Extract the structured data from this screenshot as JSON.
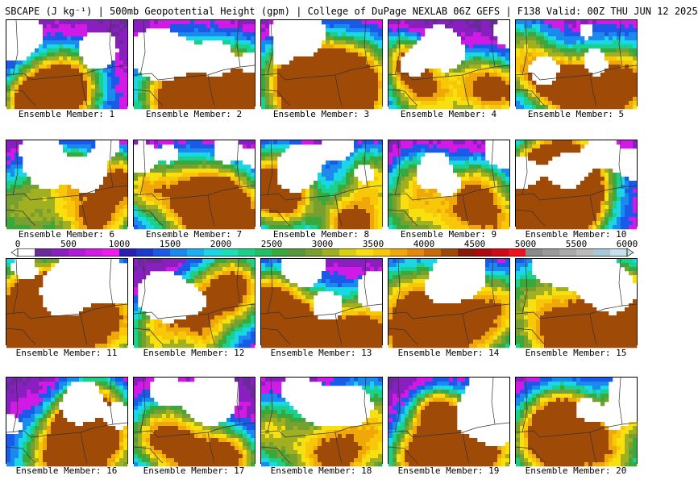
{
  "header": {
    "title": "SBCAPE (J kg⁻¹) | 500mb Geopotential Height (gpm) | College of DuPage NEXLAB 06Z GEFS | F138 Valid: 00Z THU JUN 12 2025"
  },
  "colorbar": {
    "labels": [
      "0",
      "500",
      "1000",
      "1500",
      "2000",
      "2500",
      "3000",
      "3500",
      "4000",
      "4500",
      "5000",
      "5500",
      "6000"
    ],
    "range": [
      0,
      6000
    ],
    "colors": [
      "#ffffff",
      "#6a2a9a",
      "#8a1fc0",
      "#b01ad8",
      "#d21ae6",
      "#f01af0",
      "#2a1fb0",
      "#1a3ad0",
      "#1a5ae8",
      "#1a8aee",
      "#1ab0f0",
      "#1ad6e6",
      "#1ae0b8",
      "#1ad08a",
      "#22c060",
      "#3aa83a",
      "#58983a",
      "#78a030",
      "#a0b020",
      "#d8d010",
      "#f8e010",
      "#f8c808",
      "#f0a808",
      "#e88808",
      "#c86a08",
      "#a04a08",
      "#8a1a08",
      "#b00810",
      "#d00818",
      "#f01020",
      "#8a8a8a",
      "#9a9a9a",
      "#aaaaaa",
      "#bababa",
      "#a8c8d8",
      "#c8e0ec"
    ]
  },
  "members": [
    {
      "label": "Ensemble Member: 1"
    },
    {
      "label": "Ensemble Member: 2"
    },
    {
      "label": "Ensemble Member: 3"
    },
    {
      "label": "Ensemble Member: 4"
    },
    {
      "label": "Ensemble Member: 5"
    },
    {
      "label": "Ensemble Member: 6"
    },
    {
      "label": "Ensemble Member: 7"
    },
    {
      "label": "Ensemble Member: 8"
    },
    {
      "label": "Ensemble Member: 9"
    },
    {
      "label": "Ensemble Member: 10"
    },
    {
      "label": "Ensemble Member: 11"
    },
    {
      "label": "Ensemble Member: 12"
    },
    {
      "label": "Ensemble Member: 13"
    },
    {
      "label": "Ensemble Member: 14"
    },
    {
      "label": "Ensemble Member: 15"
    },
    {
      "label": "Ensemble Member: 16"
    },
    {
      "label": "Ensemble Member: 17"
    },
    {
      "label": "Ensemble Member: 18"
    },
    {
      "label": "Ensemble Member: 19"
    },
    {
      "label": "Ensemble Member: 20"
    }
  ]
}
